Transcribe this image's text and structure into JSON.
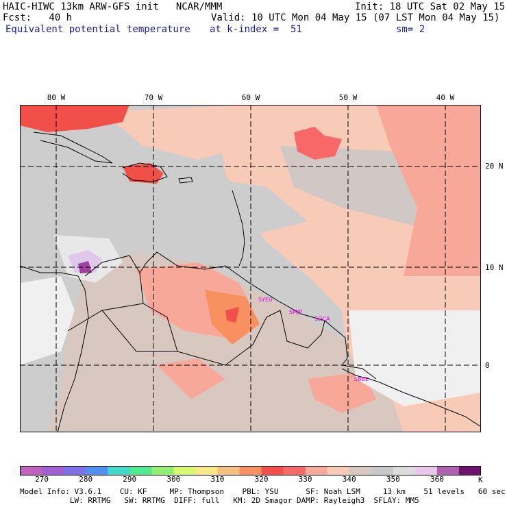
{
  "header": {
    "line1_left": "HAIC-HIWC 13km ARW-GFS init   NCAR/MMM",
    "line1_right": "Init: 18 UTC Sat 02 May 15",
    "line2_left": "Fcst:   40 h",
    "line2_right": "Valid: 10 UTC Mon 04 May 15 (07 LST Mon 04 May 15)",
    "field": "Equivalent potential temperature",
    "level": "at k-index =  51",
    "smooth": "sm= 2"
  },
  "map": {
    "lon_labels": [
      "80 W",
      "70 W",
      "60 W",
      "50 W",
      "40 W"
    ],
    "lat_labels": [
      "20 N",
      "10 N",
      "0"
    ],
    "stations": [
      "SYEU",
      "SMJP",
      "SOCA",
      "SBBE"
    ]
  },
  "colorbar": {
    "unit": "K",
    "tick_labels": [
      "270",
      "280",
      "290",
      "300",
      "310",
      "320",
      "330",
      "340",
      "350",
      "360"
    ],
    "colors": [
      "#c060c0",
      "#a060d0",
      "#8070e8",
      "#5090f0",
      "#40d8c8",
      "#50e890",
      "#90f070",
      "#d8f870",
      "#f8e888",
      "#f8c080",
      "#f89060",
      "#f05048",
      "#f86868",
      "#f8a898",
      "#f8cbb8",
      "#d8c8c0",
      "#c8c8c8",
      "#dcdcdc",
      "#e8c8e8",
      "#b060b0",
      "#701070"
    ]
  },
  "footer": {
    "line1": "Model Info: V3.6.1    CU: KF     MP: Thompson    PBL: YSU      SF: Noah LSM     13 km    51 levels   60 sec",
    "line2": "           LW: RRTMG   SW: RRTMG  DIFF: full   KM: 2D Smagor DAMP: Rayleigh3  SFLAY: MM5"
  }
}
